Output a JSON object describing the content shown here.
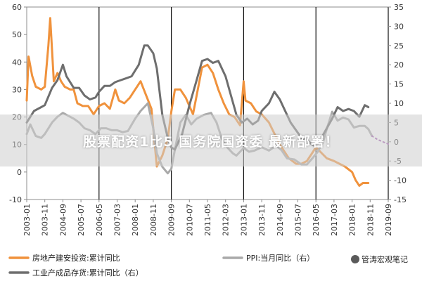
{
  "chart_data": {
    "type": "line",
    "title": "",
    "left_axis": {
      "min": -10,
      "max": 60,
      "ticks": [
        -10,
        0,
        10,
        20,
        30,
        40,
        50,
        60
      ]
    },
    "right_axis": {
      "min": -15,
      "max": 35,
      "ticks": [
        -15,
        -10,
        -5,
        0,
        5,
        10,
        15,
        20,
        25,
        30,
        35
      ]
    },
    "x_ticks": [
      "2003-01",
      "2003-11",
      "2004-09",
      "2005-07",
      "2006-05",
      "2007-03",
      "2008-01",
      "2008-11",
      "2009-09",
      "2010-07",
      "2011-05",
      "2012-03",
      "2013-01",
      "2013-11",
      "2014-09",
      "2015-07",
      "2016-05",
      "2017-03",
      "2018-01",
      "2018-11",
      "2019-09"
    ],
    "vertical_lines": [
      "2006-05",
      "2009-09",
      "2013-01",
      "2016-05",
      "2019-09"
    ],
    "series": [
      {
        "name": "房地产建安投资:累计同比",
        "axis": "left",
        "color": "#F0923C",
        "points": [
          [
            "2003-01",
            26
          ],
          [
            "2003-02",
            42
          ],
          [
            "2003-04",
            35
          ],
          [
            "2003-06",
            31
          ],
          [
            "2003-09",
            30
          ],
          [
            "2003-11",
            31
          ],
          [
            "2004-01",
            46
          ],
          [
            "2004-02",
            56
          ],
          [
            "2004-04",
            33
          ],
          [
            "2004-06",
            36
          ],
          [
            "2004-08",
            33
          ],
          [
            "2004-10",
            31
          ],
          [
            "2005-01",
            30
          ],
          [
            "2005-03",
            30
          ],
          [
            "2005-05",
            25
          ],
          [
            "2005-08",
            24
          ],
          [
            "2005-11",
            24
          ],
          [
            "2006-02",
            21
          ],
          [
            "2006-05",
            24
          ],
          [
            "2006-08",
            25
          ],
          [
            "2006-11",
            23
          ],
          [
            "2007-02",
            30
          ],
          [
            "2007-04",
            26
          ],
          [
            "2007-07",
            25
          ],
          [
            "2007-10",
            27
          ],
          [
            "2008-01",
            30
          ],
          [
            "2008-04",
            33
          ],
          [
            "2008-07",
            28
          ],
          [
            "2008-10",
            23
          ],
          [
            "2009-01",
            2
          ],
          [
            "2009-04",
            6
          ],
          [
            "2009-07",
            12
          ],
          [
            "2009-09",
            22
          ],
          [
            "2009-11",
            30
          ],
          [
            "2010-02",
            30
          ],
          [
            "2010-05",
            27
          ],
          [
            "2010-07",
            24
          ],
          [
            "2010-09",
            21
          ],
          [
            "2011-02",
            38
          ],
          [
            "2011-05",
            39
          ],
          [
            "2011-08",
            36
          ],
          [
            "2011-11",
            30
          ],
          [
            "2012-02",
            25
          ],
          [
            "2012-05",
            21
          ],
          [
            "2012-08",
            20
          ],
          [
            "2012-11",
            17
          ],
          [
            "2013-01",
            33
          ],
          [
            "2013-02",
            26
          ],
          [
            "2013-05",
            25
          ],
          [
            "2013-08",
            22
          ],
          [
            "2013-11",
            21
          ],
          [
            "2014-03",
            18
          ],
          [
            "2014-06",
            14
          ],
          [
            "2014-09",
            10
          ],
          [
            "2015-02",
            5
          ],
          [
            "2015-06",
            3
          ],
          [
            "2015-09",
            3
          ],
          [
            "2015-12",
            4
          ],
          [
            "2016-03",
            7
          ],
          [
            "2016-05",
            9
          ],
          [
            "2016-08",
            7
          ],
          [
            "2016-11",
            5
          ],
          [
            "2017-03",
            4
          ],
          [
            "2017-06",
            3
          ],
          [
            "2017-09",
            2
          ],
          [
            "2018-01",
            0
          ],
          [
            "2018-03",
            -3
          ],
          [
            "2018-05",
            -5
          ],
          [
            "2018-07",
            -4
          ],
          [
            "2018-10",
            -4
          ]
        ]
      },
      {
        "name": "PPI:当月同比（右）",
        "axis": "right",
        "color": "#A9A9A9",
        "points": [
          [
            "2003-01",
            2.0
          ],
          [
            "2003-03",
            4.5
          ],
          [
            "2003-06",
            1.5
          ],
          [
            "2003-09",
            1.0
          ],
          [
            "2003-11",
            2.0
          ],
          [
            "2004-03",
            5.0
          ],
          [
            "2004-06",
            6.5
          ],
          [
            "2004-09",
            7.5
          ],
          [
            "2004-11",
            7.0
          ],
          [
            "2005-03",
            6.0
          ],
          [
            "2005-06",
            5.0
          ],
          [
            "2005-09",
            3.5
          ],
          [
            "2005-12",
            3.0
          ],
          [
            "2006-03",
            2.0
          ],
          [
            "2006-06",
            3.5
          ],
          [
            "2006-09",
            3.5
          ],
          [
            "2006-12",
            3.0
          ],
          [
            "2007-03",
            3.0
          ],
          [
            "2007-06",
            2.5
          ],
          [
            "2007-09",
            2.8
          ],
          [
            "2008-01",
            6.0
          ],
          [
            "2008-04",
            8.0
          ],
          [
            "2008-08",
            10.0
          ],
          [
            "2008-11",
            3.5
          ],
          [
            "2009-01",
            -3.0
          ],
          [
            "2009-04",
            -6.5
          ],
          [
            "2009-07",
            -8.2
          ],
          [
            "2009-09",
            -7.0
          ],
          [
            "2009-11",
            -2.0
          ],
          [
            "2010-02",
            5.0
          ],
          [
            "2010-05",
            7.0
          ],
          [
            "2010-08",
            4.5
          ],
          [
            "2010-11",
            6.0
          ],
          [
            "2011-03",
            7.0
          ],
          [
            "2011-07",
            7.5
          ],
          [
            "2011-10",
            5.0
          ],
          [
            "2012-01",
            0.7
          ],
          [
            "2012-04",
            -1.5
          ],
          [
            "2012-07",
            -3.0
          ],
          [
            "2012-09",
            -3.6
          ],
          [
            "2013-01",
            -1.6
          ],
          [
            "2013-04",
            -2.6
          ],
          [
            "2013-07",
            -2.3
          ],
          [
            "2013-11",
            -1.4
          ],
          [
            "2014-03",
            -2.3
          ],
          [
            "2014-07",
            -1.0
          ],
          [
            "2014-10",
            -2.2
          ],
          [
            "2015-01",
            -4.3
          ],
          [
            "2015-05",
            -4.6
          ],
          [
            "2015-09",
            -5.9
          ],
          [
            "2015-12",
            -5.9
          ],
          [
            "2016-03",
            -4.3
          ],
          [
            "2016-06",
            -2.6
          ],
          [
            "2016-09",
            0.1
          ],
          [
            "2016-11",
            3.3
          ],
          [
            "2017-02",
            7.8
          ],
          [
            "2017-05",
            5.5
          ],
          [
            "2017-08",
            6.3
          ],
          [
            "2017-11",
            5.8
          ],
          [
            "2018-02",
            3.7
          ],
          [
            "2018-05",
            4.1
          ],
          [
            "2018-08",
            4.1
          ],
          [
            "2018-10",
            3.3
          ],
          [
            "2018-12",
            1.5
          ]
        ]
      },
      {
        "name": "工业产成品存货:累计同比（右）",
        "axis": "right",
        "color": "#6E6E6E",
        "points": [
          [
            "2003-01",
            5.0
          ],
          [
            "2003-05",
            8.0
          ],
          [
            "2003-09",
            9.0
          ],
          [
            "2003-11",
            9.5
          ],
          [
            "2004-03",
            14.0
          ],
          [
            "2004-06",
            16.0
          ],
          [
            "2004-09",
            20.0
          ],
          [
            "2004-11",
            17.0
          ],
          [
            "2005-03",
            14.0
          ],
          [
            "2005-06",
            14.0
          ],
          [
            "2005-09",
            12.0
          ],
          [
            "2005-12",
            11.0
          ],
          [
            "2006-03",
            11.5
          ],
          [
            "2006-05",
            13.0
          ],
          [
            "2006-08",
            14.5
          ],
          [
            "2006-11",
            14.5
          ],
          [
            "2007-02",
            15.5
          ],
          [
            "2007-05",
            16.0
          ],
          [
            "2007-08",
            16.5
          ],
          [
            "2007-11",
            17.0
          ],
          [
            "2008-03",
            20.0
          ],
          [
            "2008-06",
            25.0
          ],
          [
            "2008-08",
            25.0
          ],
          [
            "2008-11",
            23.0
          ],
          [
            "2009-01",
            19.0
          ],
          [
            "2009-04",
            7.0
          ],
          [
            "2009-07",
            1.0
          ],
          [
            "2009-09",
            -1.5
          ],
          [
            "2009-11",
            -2.0
          ],
          [
            "2010-03",
            2.0
          ],
          [
            "2010-07",
            9.5
          ],
          [
            "2010-11",
            16.0
          ],
          [
            "2011-02",
            21.0
          ],
          [
            "2011-05",
            21.5
          ],
          [
            "2011-08",
            20.5
          ],
          [
            "2011-11",
            21.0
          ],
          [
            "2012-03",
            17.0
          ],
          [
            "2012-06",
            12.0
          ],
          [
            "2012-09",
            7.0
          ],
          [
            "2012-12",
            5.0
          ],
          [
            "2013-03",
            6.0
          ],
          [
            "2013-06",
            4.5
          ],
          [
            "2013-09",
            5.5
          ],
          [
            "2013-11",
            8.0
          ],
          [
            "2014-03",
            10.0
          ],
          [
            "2014-06",
            13.0
          ],
          [
            "2014-09",
            11.0
          ],
          [
            "2014-12",
            8.0
          ],
          [
            "2015-03",
            5.0
          ],
          [
            "2015-06",
            3.0
          ],
          [
            "2015-09",
            1.0
          ],
          [
            "2015-12",
            0.5
          ],
          [
            "2016-03",
            -0.8
          ],
          [
            "2016-05",
            -1.2
          ],
          [
            "2016-08",
            1.0
          ],
          [
            "2016-11",
            3.5
          ],
          [
            "2017-02",
            6.0
          ],
          [
            "2017-05",
            9.0
          ],
          [
            "2017-08",
            8.0
          ],
          [
            "2017-11",
            8.5
          ],
          [
            "2018-02",
            8.0
          ],
          [
            "2018-05",
            6.5
          ],
          [
            "2018-08",
            9.5
          ],
          [
            "2018-10",
            9.0
          ]
        ]
      },
      {
        "name": "",
        "axis": "right",
        "color": "#A35BB0",
        "dashed": true,
        "points": [
          [
            "2018-12",
            1.5
          ],
          [
            "2019-03",
            0.6
          ],
          [
            "2019-06",
            0.0
          ],
          [
            "2019-09",
            -0.6
          ]
        ]
      }
    ],
    "grid": false,
    "legend_position": "bottom"
  },
  "legend": {
    "items": [
      {
        "label": "房地产建安投资:累计同比",
        "color": "#F0923C"
      },
      {
        "label": "PPI:当月同比（右）",
        "color": "#A9A9A9"
      },
      {
        "label": "工业产成品存货:累计同比（右）",
        "color": "#6E6E6E"
      }
    ]
  },
  "overlay": {
    "banner_text": "股票配资1比5 国务院国资委 最新部署！",
    "watermark_text": "管涛宏观笔记"
  }
}
